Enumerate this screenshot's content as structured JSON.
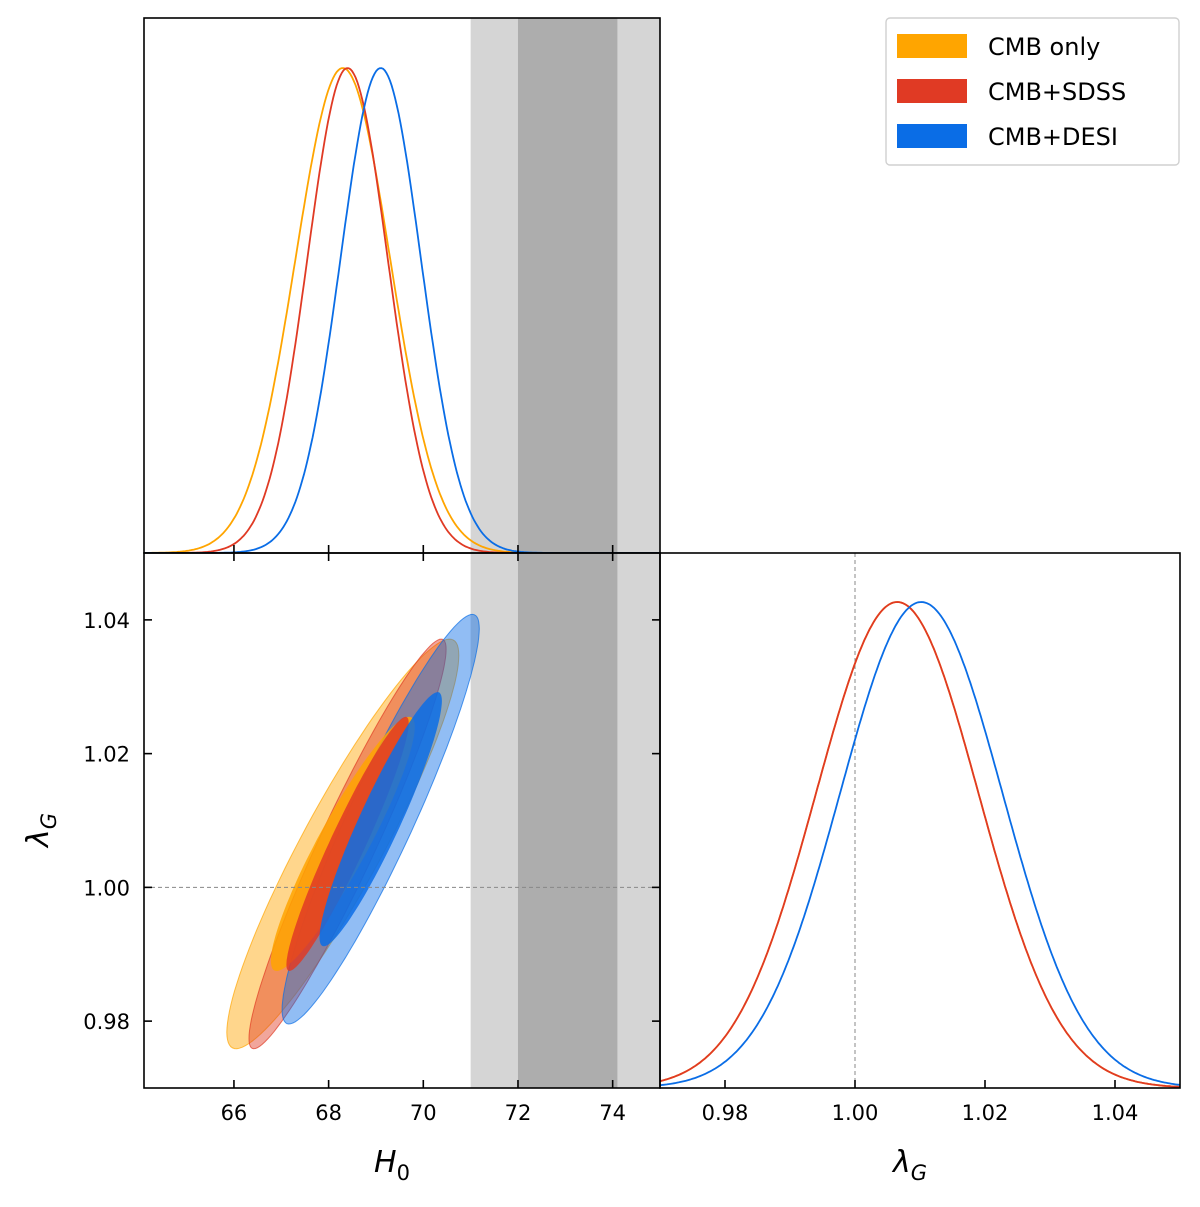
{
  "chart_data": {
    "type": "triangle-corner-plot",
    "parameters": {
      "H0": {
        "label": "H",
        "subscript": "0",
        "range": [
          64.1,
          75.0
        ],
        "ticks": [
          66,
          68,
          70,
          72,
          74
        ]
      },
      "lambdaG": {
        "label": "λ",
        "subscript": "G",
        "range": [
          0.97,
          1.05
        ],
        "ticks_left": [
          0.98,
          1.0,
          1.02,
          1.04
        ],
        "ticks_bottom": [
          0.98,
          1.0,
          1.02,
          1.04
        ]
      }
    },
    "tick_labels": {
      "h0": [
        "66",
        "68",
        "70",
        "72",
        "74"
      ],
      "lambda_left": [
        "0.98",
        "1.00",
        "1.02",
        "1.04"
      ],
      "lambda_bottom": [
        "0.98",
        "1.00",
        "1.02",
        "1.04"
      ]
    },
    "axis_labels": {
      "h0_x": "H",
      "h0_x_sub": "0",
      "lambda_y": "λ",
      "lambda_y_sub": "G",
      "lambda_x": "λ",
      "lambda_x_sub": "G"
    },
    "series": [
      {
        "name": "CMB only",
        "color": "#ffa500",
        "h0_mean": 68.3,
        "h0_sigma": 1.0,
        "lambda_mean": 1.0065,
        "lambda_sigma": 0.0125,
        "correlation": 0.92
      },
      {
        "name": "CMB+SDSS",
        "color": "#e03a24",
        "h0_mean": 68.4,
        "h0_sigma": 0.85,
        "lambda_mean": 1.0065,
        "lambda_sigma": 0.0125,
        "correlation": 0.95
      },
      {
        "name": "CMB+DESI",
        "color": "#0a6de6",
        "h0_mean": 69.1,
        "h0_sigma": 0.85,
        "lambda_mean": 1.0102,
        "lambda_sigma": 0.0125,
        "correlation": 0.93
      }
    ],
    "reference_band": {
      "inner": [
        72.0,
        74.1
      ],
      "outer": [
        71.0,
        75.0
      ],
      "inner_color": "#adadad",
      "outer_color": "#d5d5d5"
    },
    "reference_line": {
      "lambda": 1.0
    },
    "legend": {
      "placement": "top-right",
      "entries": [
        "CMB only",
        "CMB+SDSS",
        "CMB+DESI"
      ]
    }
  }
}
